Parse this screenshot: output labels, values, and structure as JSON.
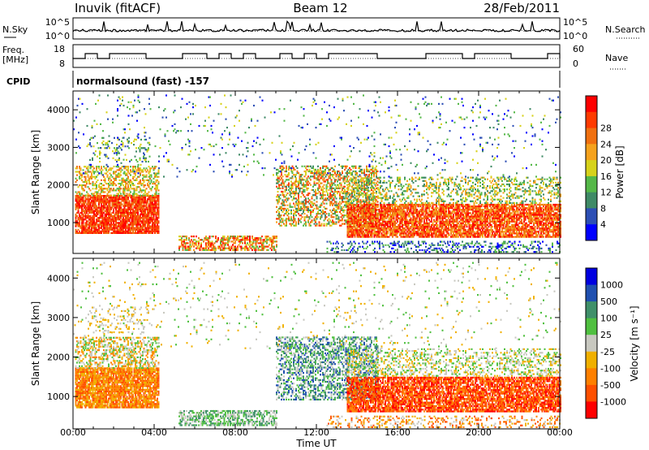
{
  "header": {
    "station": "Inuvik (fitACF)",
    "beam": "Beam 12",
    "date": "28/Feb/2011"
  },
  "panel_labels": {
    "nsky": "N.Sky",
    "nsearch": "N.Search",
    "freq_line1": "Freq.",
    "freq_line2": "[MHz]",
    "nave": "Nave",
    "cpid": "CPID",
    "cpid_text": "normalsound (fast) -157"
  },
  "noise_axis": {
    "left_ticks": [
      "10^5",
      "10^0"
    ],
    "right_ticks": [
      "10^5",
      "10^0"
    ]
  },
  "freq_axis": {
    "left_ticks": [
      "18",
      "8"
    ],
    "right_ticks": [
      "60",
      "0"
    ]
  },
  "colors": {
    "power_scale": [
      "#0000ff",
      "#2d4fb5",
      "#3f8a66",
      "#55b848",
      "#d7d21a",
      "#f5a21d",
      "#f07010",
      "#ff3b00",
      "#ff0000"
    ],
    "velocity_scale": [
      "#0000e0",
      "#2050b0",
      "#40906a",
      "#50c040",
      "#c8c8c0",
      "#f0b000",
      "#ff8000",
      "#ff5000",
      "#ff0000"
    ]
  },
  "chart_data": [
    {
      "type": "heatmap",
      "name": "power",
      "xlabel": "Time UT",
      "ylabel": "Slant Range [km]",
      "x_ticks": [
        "00:00",
        "04:00",
        "08:00",
        "12:00",
        "16:00",
        "20:00",
        "00:00"
      ],
      "y_ticks": [
        1000,
        2000,
        3000,
        4000
      ],
      "xlim_hours": [
        0,
        24
      ],
      "ylim_km": [
        180,
        4500
      ],
      "colorbar": {
        "label": "Power [dB]",
        "ticks": [
          4,
          8,
          12,
          16,
          20,
          24,
          28
        ]
      }
    },
    {
      "type": "heatmap",
      "name": "velocity",
      "xlabel": "Time UT",
      "ylabel": "Slant Range [km]",
      "x_ticks": [
        "00:00",
        "04:00",
        "08:00",
        "12:00",
        "16:00",
        "20:00",
        "00:00"
      ],
      "y_ticks": [
        1000,
        2000,
        3000,
        4000
      ],
      "xlim_hours": [
        0,
        24
      ],
      "ylim_km": [
        180,
        4500
      ],
      "colorbar": {
        "label": "Velocity [m s⁻¹]",
        "ticks": [
          1000,
          500,
          100,
          25,
          -25,
          -100,
          -500,
          -1000
        ]
      }
    }
  ]
}
